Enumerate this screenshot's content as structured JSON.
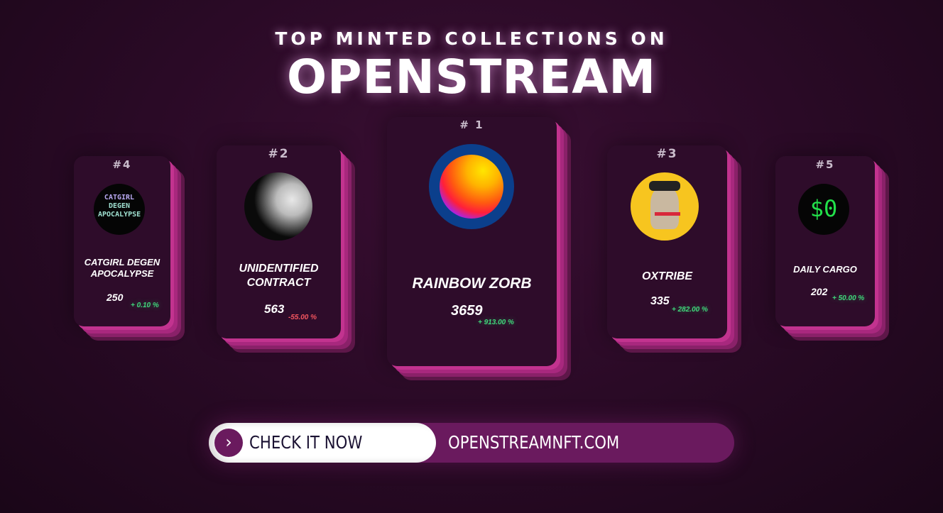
{
  "header": {
    "line1": "TOP MINTED COLLECTIONS ON",
    "line2": "OPENSTREAM"
  },
  "cards": [
    {
      "rank": "#4",
      "name_line1": "CATGIRL DEGEN",
      "name_line2": "APOCALYPSE",
      "count": "250",
      "change": "+ 0.10 %",
      "trend": "up",
      "image": "catgirl-degen-apocalypse-logo"
    },
    {
      "rank": "#2",
      "name_line1": "UNIDENTIFIED",
      "name_line2": "CONTRACT",
      "count": "563",
      "change": "-55.00 %",
      "trend": "down",
      "image": "baseball-hand-photo"
    },
    {
      "rank": "# 1",
      "name_line1": "RAINBOW ZORB",
      "count": "3659",
      "change": "+ 913.00 %",
      "trend": "up",
      "image": "rainbow-orb"
    },
    {
      "rank": "#3",
      "name_line1": "OXTRIBE",
      "count": "335",
      "change": "+ 282.00 %",
      "trend": "up",
      "image": "ape-avatar"
    },
    {
      "rank": "#5",
      "name_line1": "DAILY CARGO",
      "count": "202",
      "change": "+ 50.00 %",
      "trend": "up",
      "image": "dollar-zero-logo"
    }
  ],
  "cta": {
    "button_label": "CHECK IT NOW",
    "url": "OPENSTREAMNFT.COM",
    "icon": "chevron-right-icon"
  },
  "colors": {
    "positive": "#3fd67a",
    "negative": "#f2555f",
    "accent": "#c2338f",
    "cta_bg": "#6a1a5e"
  }
}
